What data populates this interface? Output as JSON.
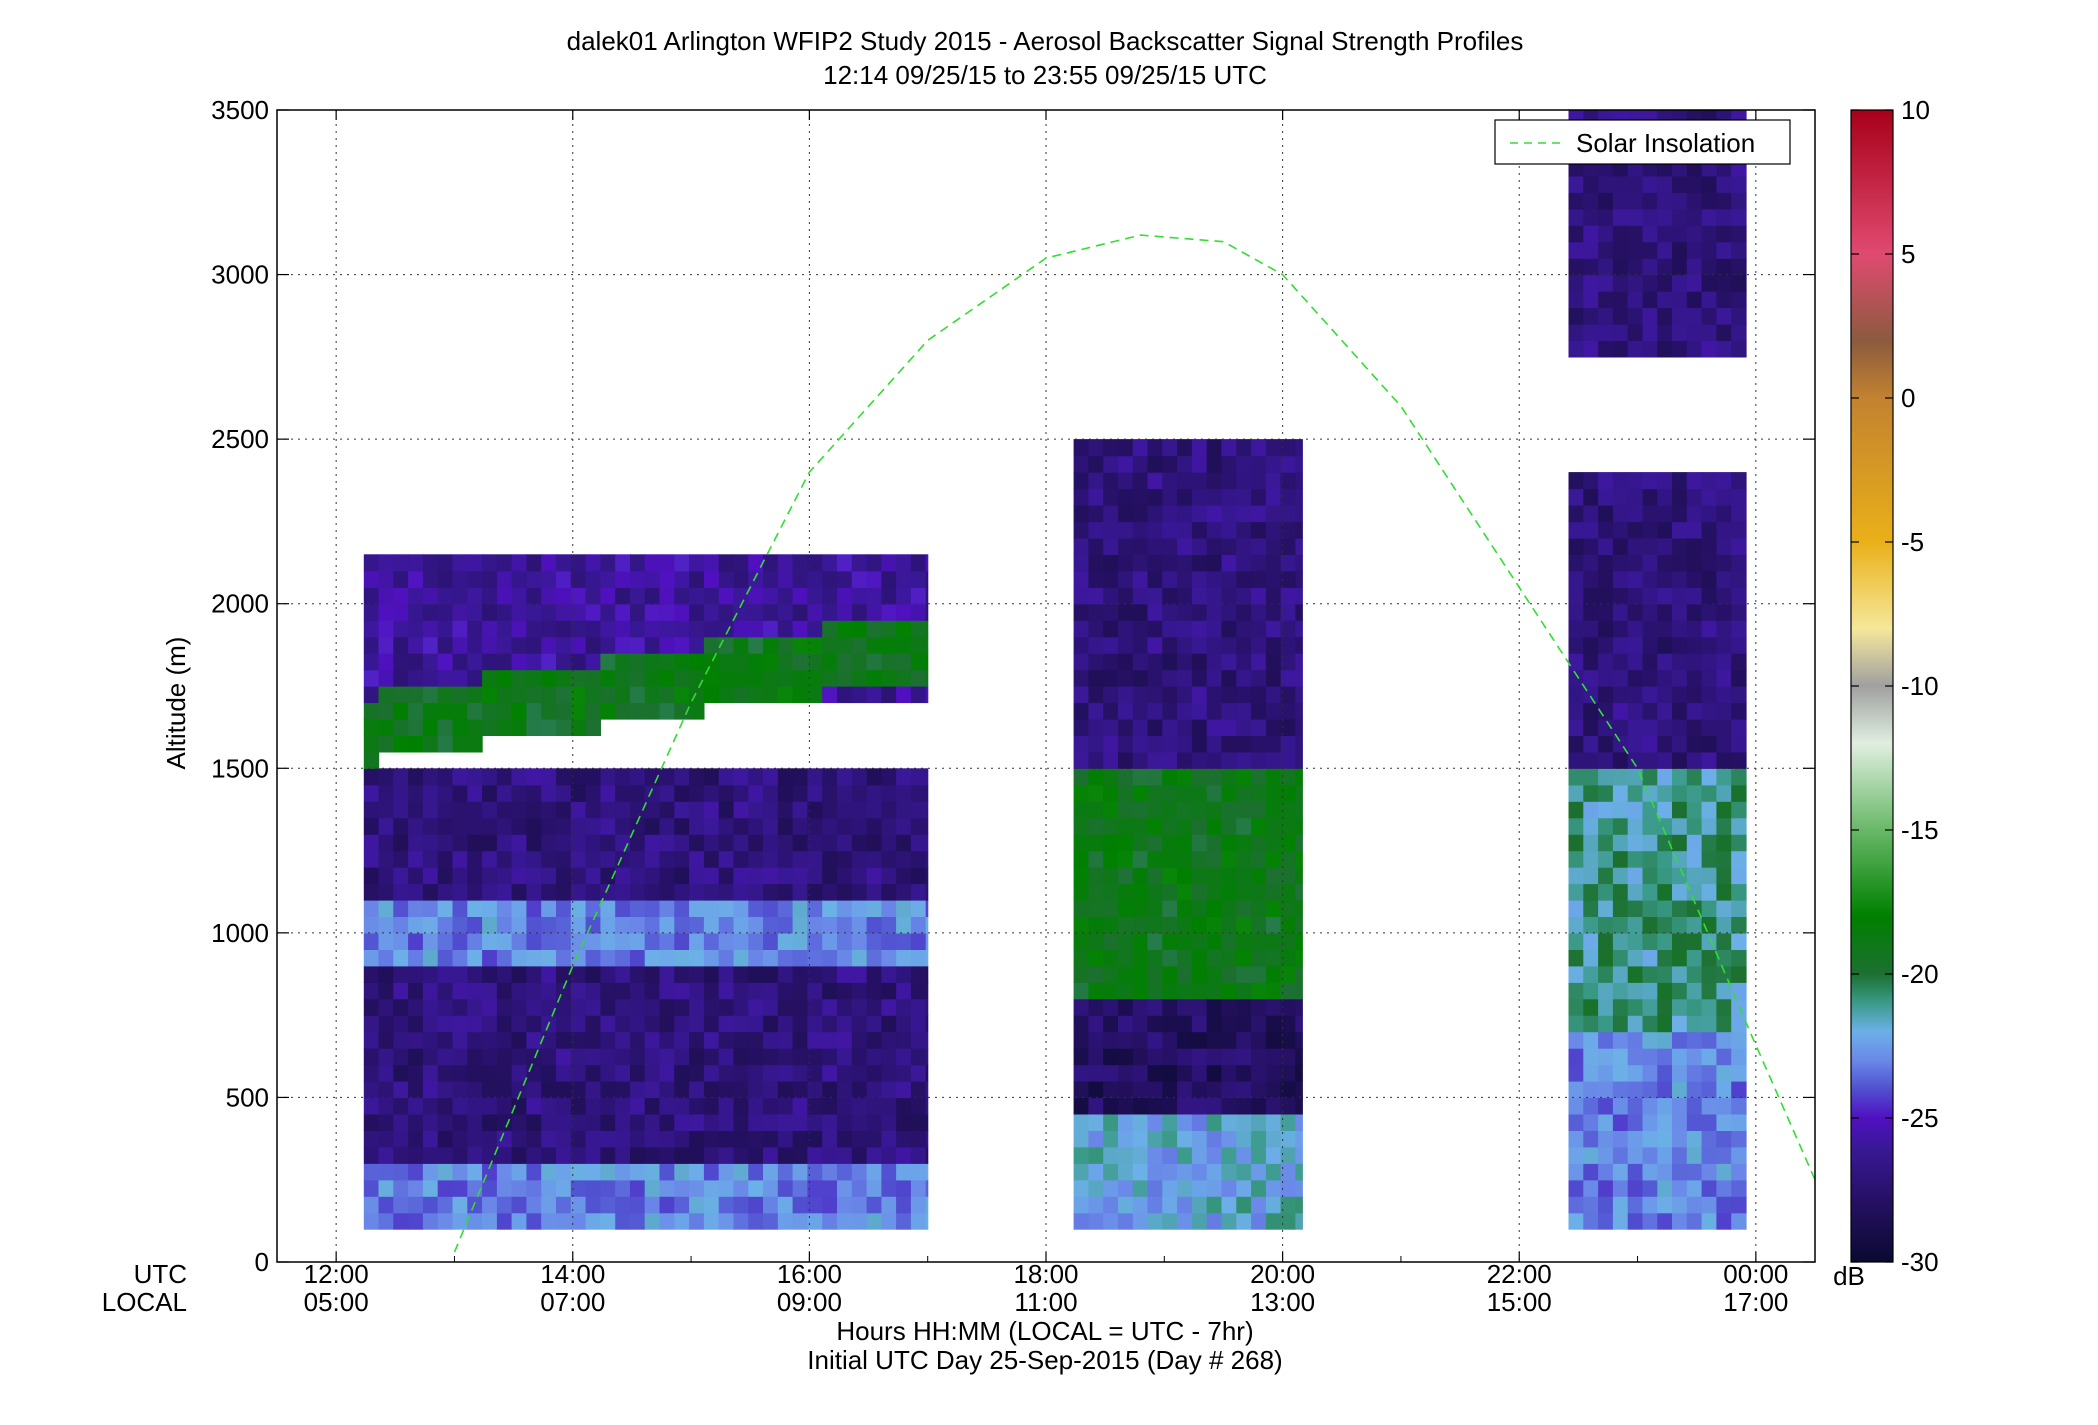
{
  "title": {
    "line1": "dalek01 Arlington WFIP2 Study 2015 - Aerosol Backscatter Signal Strength Profiles",
    "line2": "12:14 09/25/15 to 23:55 09/25/15  UTC"
  },
  "axes": {
    "ylabel": "Altitude (m)",
    "y_ticks": [
      "0",
      "500",
      "1000",
      "1500",
      "2000",
      "2500",
      "3000",
      "3500"
    ],
    "utc_label": "UTC",
    "local_label": "LOCAL",
    "x_ticks_utc": [
      "12:00",
      "14:00",
      "16:00",
      "18:00",
      "20:00",
      "22:00",
      "00:00"
    ],
    "x_ticks_local": [
      "05:00",
      "07:00",
      "09:00",
      "11:00",
      "13:00",
      "15:00",
      "17:00"
    ],
    "xlabel": "Hours HH:MM  (LOCAL = UTC - 7hr)",
    "day_label": "Initial UTC Day 25-Sep-2015 (Day # 268)"
  },
  "legend": {
    "solar_label": "Solar Insolation"
  },
  "colorbar": {
    "ticks": [
      "10",
      "5",
      "0",
      "-5",
      "-10",
      "-15",
      "-20",
      "-25",
      "-30"
    ],
    "unit": "dB"
  },
  "chart_data": {
    "type": "heatmap",
    "title": "dalek01 Arlington WFIP2 Study 2015 - Aerosol Backscatter Signal Strength Profiles",
    "subtitle": "12:14 09/25/15 to 23:55 09/25/15  UTC",
    "xlabel": "Hours HH:MM  (LOCAL = UTC - 7hr)",
    "ylabel": "Altitude (m)",
    "x_unit": "UTC hours",
    "xlim": [
      11.5,
      24.5
    ],
    "ylim": [
      0,
      3500
    ],
    "color_scale": {
      "label": "dB",
      "min": -30,
      "max": 10
    },
    "grid": true,
    "legend_placement": "top-right",
    "segments": [
      {
        "time_range_utc": [
          "12:14",
          "17:00"
        ],
        "top_altitude_m": 2150,
        "layers": [
          {
            "altitude_m": [
              100,
              300
            ],
            "dB": -23
          },
          {
            "altitude_m": [
              300,
              900
            ],
            "dB": -27
          },
          {
            "altitude_m": [
              900,
              1100
            ],
            "dB": -23
          },
          {
            "altitude_m": [
              1100,
              1500
            ],
            "dB": -27
          },
          {
            "altitude_m": [
              1500,
              1700
            ],
            "dB": -19,
            "note": "aerosol layer rising from ~1600 m to ~1850 m"
          },
          {
            "altitude_m": [
              1700,
              2150
            ],
            "dB": -26
          }
        ]
      },
      {
        "time_range_utc": [
          "18:14",
          "20:10"
        ],
        "top_altitude_m": 2500,
        "layers": [
          {
            "altitude_m": [
              100,
              450
            ],
            "dB": -22
          },
          {
            "altitude_m": [
              450,
              800
            ],
            "dB": -28
          },
          {
            "altitude_m": [
              800,
              1500
            ],
            "dB": -19
          },
          {
            "altitude_m": [
              1500,
              2500
            ],
            "dB": -27
          }
        ]
      },
      {
        "time_range_utc": [
          "22:25",
          "23:55"
        ],
        "top_altitude_m": 3500,
        "layers": [
          {
            "altitude_m": [
              100,
              700
            ],
            "dB": -23
          },
          {
            "altitude_m": [
              700,
              1500
            ],
            "dB": -21
          },
          {
            "altitude_m": [
              1500,
              2400
            ],
            "dB": -27
          },
          {
            "altitude_m": [
              2750,
              3500
            ],
            "dB": -27
          }
        ]
      }
    ],
    "solar_insolation": {
      "style": "green dashed",
      "x_utc": [
        13.0,
        14.0,
        15.0,
        16.0,
        17.0,
        18.0,
        18.8,
        19.5,
        20.0,
        21.0,
        22.0,
        23.0,
        23.95,
        24.5
      ],
      "y_m": [
        30,
        900,
        1700,
        2400,
        2800,
        3050,
        3120,
        3100,
        3000,
        2600,
        2050,
        1500,
        700,
        250
      ]
    },
    "colormap": [
      {
        "dB": 10,
        "color": "#a8001a"
      },
      {
        "dB": 5,
        "color": "#e04a70"
      },
      {
        "dB": 2,
        "color": "#8c5a40"
      },
      {
        "dB": 0,
        "color": "#c28230"
      },
      {
        "dB": -5,
        "color": "#eab018"
      },
      {
        "dB": -8,
        "color": "#f5e89a"
      },
      {
        "dB": -10,
        "color": "#a0a0a0"
      },
      {
        "dB": -12,
        "color": "#e0eee0"
      },
      {
        "dB": -15,
        "color": "#68b868"
      },
      {
        "dB": -18,
        "color": "#008000"
      },
      {
        "dB": -20,
        "color": "#1c7030"
      },
      {
        "dB": -21,
        "color": "#3a9a88"
      },
      {
        "dB": -22,
        "color": "#6cb0e8"
      },
      {
        "dB": -23,
        "color": "#6a88e8"
      },
      {
        "dB": -24,
        "color": "#5050d0"
      },
      {
        "dB": -25,
        "color": "#5010c0"
      },
      {
        "dB": -26,
        "color": "#3a1898"
      },
      {
        "dB": -28,
        "color": "#241060"
      },
      {
        "dB": -30,
        "color": "#0a0a30"
      }
    ]
  }
}
